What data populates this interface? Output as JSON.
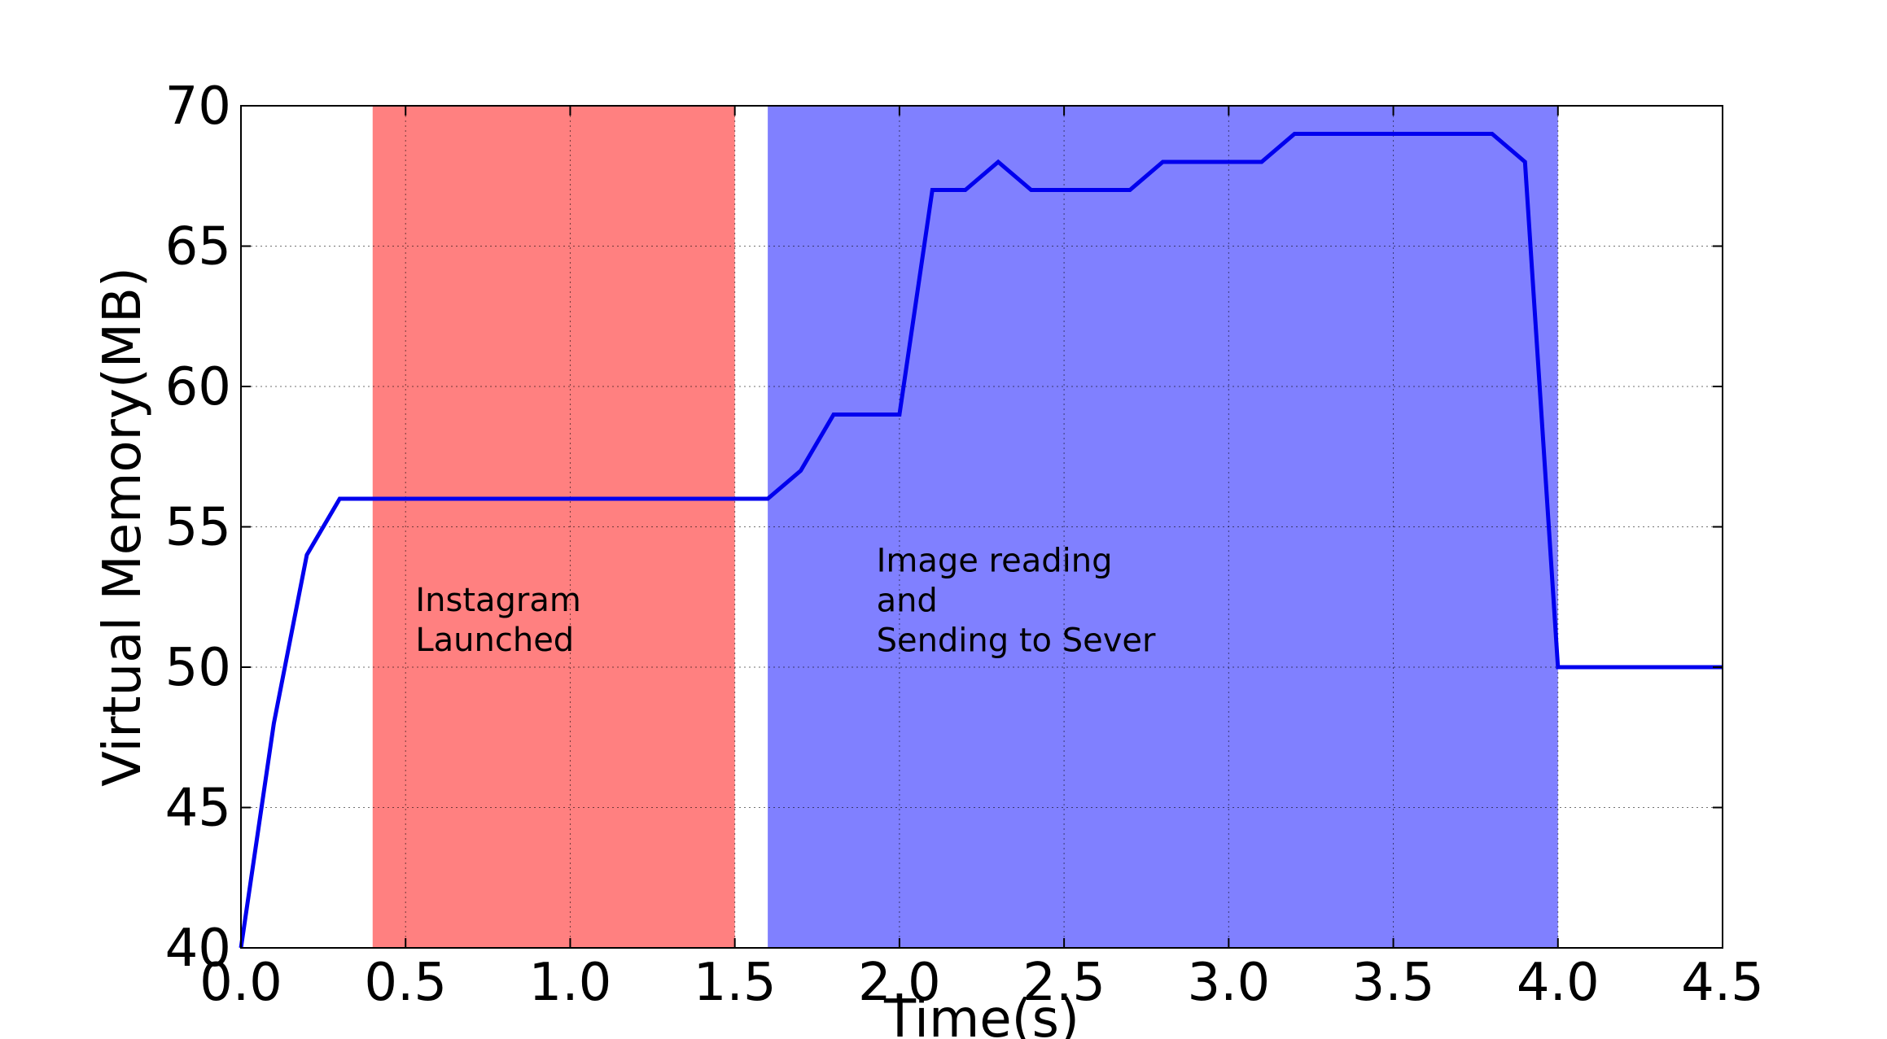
{
  "chart_data": {
    "type": "line",
    "title": "",
    "xlabel": "Time(s)",
    "ylabel": "Virtual Memory(MB)",
    "xlim": [
      0.0,
      4.5
    ],
    "ylim": [
      40,
      70
    ],
    "grid": true,
    "x_ticks": [
      "0.0",
      "0.5",
      "1.0",
      "1.5",
      "2.0",
      "2.5",
      "3.0",
      "3.5",
      "4.0",
      "4.5"
    ],
    "y_ticks": [
      "40",
      "45",
      "50",
      "55",
      "60",
      "65",
      "70"
    ],
    "series": [
      {
        "color": "#0000ee",
        "x": [
          0.0,
          0.1,
          0.2,
          0.3,
          1.6,
          1.7,
          1.8,
          1.9,
          2.0,
          2.1,
          2.2,
          2.3,
          2.4,
          2.5,
          2.6,
          2.7,
          2.8,
          2.9,
          3.0,
          3.1,
          3.2,
          3.3,
          3.4,
          3.5,
          3.6,
          3.7,
          3.8,
          3.9,
          4.0,
          4.5
        ],
        "y": [
          40,
          48,
          54,
          56,
          56,
          57,
          59,
          59,
          59,
          67,
          67,
          68,
          67,
          67,
          67,
          67,
          68,
          68,
          68,
          68,
          69,
          69,
          69,
          69,
          69,
          69,
          69,
          68,
          50,
          50
        ]
      }
    ],
    "shaded_regions": [
      {
        "x_start": 0.4,
        "x_end": 1.5,
        "color": "#ff8080",
        "label_lines": [
          "Instagram",
          "Launched"
        ]
      },
      {
        "x_start": 1.6,
        "x_end": 4.0,
        "color": "#8080ff",
        "label_lines": [
          "Image reading",
          "and",
          "Sending to Sever"
        ]
      }
    ]
  }
}
